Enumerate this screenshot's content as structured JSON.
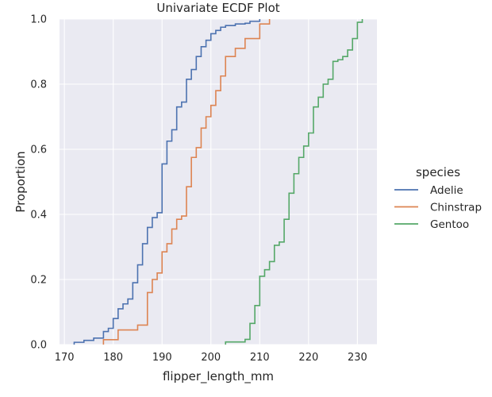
{
  "chart_data": {
    "type": "line",
    "subtype": "ecdf",
    "title": "Univariate ECDF  Plot",
    "xlabel": "flipper_length_mm",
    "ylabel": "Proportion",
    "xlim": [
      169,
      234
    ],
    "ylim": [
      0,
      1
    ],
    "xticks": [
      "170",
      "180",
      "190",
      "200",
      "210",
      "220",
      "230"
    ],
    "yticks": [
      "0.0",
      "0.2",
      "0.4",
      "0.6",
      "0.8",
      "1.0"
    ],
    "grid": true,
    "legend": {
      "title": "species",
      "placement": "right"
    },
    "series": [
      {
        "name": "Adelie",
        "color": "#4c72b0",
        "steps": [
          [
            172,
            0.007
          ],
          [
            174,
            0.013
          ],
          [
            176,
            0.02
          ],
          [
            178,
            0.04
          ],
          [
            179,
            0.05
          ],
          [
            180,
            0.08
          ],
          [
            181,
            0.11
          ],
          [
            182,
            0.125
          ],
          [
            183,
            0.14
          ],
          [
            184,
            0.19
          ],
          [
            185,
            0.245
          ],
          [
            186,
            0.31
          ],
          [
            187,
            0.36
          ],
          [
            188,
            0.39
          ],
          [
            189,
            0.405
          ],
          [
            190,
            0.555
          ],
          [
            191,
            0.625
          ],
          [
            192,
            0.66
          ],
          [
            193,
            0.73
          ],
          [
            194,
            0.745
          ],
          [
            195,
            0.815
          ],
          [
            196,
            0.845
          ],
          [
            197,
            0.885
          ],
          [
            198,
            0.915
          ],
          [
            199,
            0.935
          ],
          [
            200,
            0.955
          ],
          [
            201,
            0.965
          ],
          [
            202,
            0.975
          ],
          [
            203,
            0.98
          ],
          [
            205,
            0.985
          ],
          [
            207,
            0.987
          ],
          [
            208,
            0.993
          ],
          [
            210,
            1.0
          ]
        ]
      },
      {
        "name": "Chinstrap",
        "color": "#dd8452",
        "steps": [
          [
            178,
            0.015
          ],
          [
            181,
            0.045
          ],
          [
            185,
            0.06
          ],
          [
            187,
            0.16
          ],
          [
            188,
            0.2
          ],
          [
            189,
            0.22
          ],
          [
            190,
            0.285
          ],
          [
            191,
            0.31
          ],
          [
            192,
            0.355
          ],
          [
            193,
            0.385
          ],
          [
            194,
            0.395
          ],
          [
            195,
            0.485
          ],
          [
            196,
            0.575
          ],
          [
            197,
            0.605
          ],
          [
            198,
            0.665
          ],
          [
            199,
            0.7
          ],
          [
            200,
            0.735
          ],
          [
            201,
            0.78
          ],
          [
            202,
            0.825
          ],
          [
            203,
            0.885
          ],
          [
            205,
            0.91
          ],
          [
            207,
            0.94
          ],
          [
            210,
            0.985
          ],
          [
            212,
            1.0
          ]
        ]
      },
      {
        "name": "Gentoo",
        "color": "#55a868",
        "steps": [
          [
            203,
            0.008
          ],
          [
            207,
            0.016
          ],
          [
            208,
            0.065
          ],
          [
            209,
            0.12
          ],
          [
            210,
            0.21
          ],
          [
            211,
            0.23
          ],
          [
            212,
            0.255
          ],
          [
            213,
            0.305
          ],
          [
            214,
            0.315
          ],
          [
            215,
            0.385
          ],
          [
            216,
            0.465
          ],
          [
            217,
            0.525
          ],
          [
            218,
            0.575
          ],
          [
            219,
            0.61
          ],
          [
            220,
            0.65
          ],
          [
            221,
            0.73
          ],
          [
            222,
            0.76
          ],
          [
            223,
            0.8
          ],
          [
            224,
            0.815
          ],
          [
            225,
            0.87
          ],
          [
            226,
            0.875
          ],
          [
            227,
            0.885
          ],
          [
            228,
            0.905
          ],
          [
            229,
            0.94
          ],
          [
            230,
            0.99
          ],
          [
            231,
            1.0
          ]
        ]
      }
    ]
  }
}
